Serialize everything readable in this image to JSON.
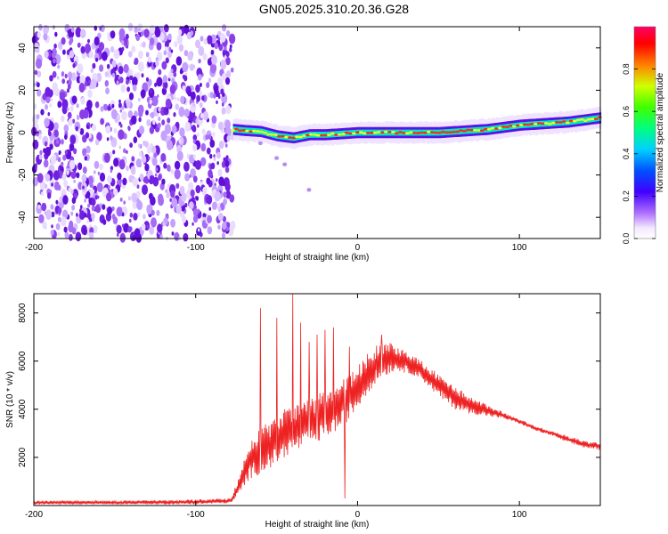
{
  "title": "GN05.2025.310.20.36.G28",
  "chart_data": [
    {
      "type": "heatmap",
      "name": "spectrogram",
      "xlabel": "Height of straight line (km)",
      "ylabel": "Frequency (Hz)",
      "xlim": [
        -200,
        150
      ],
      "ylim": [
        -50,
        50
      ],
      "x_ticks": [
        -200,
        -100,
        0,
        100
      ],
      "y_ticks": [
        -40,
        -20,
        0,
        20,
        40
      ],
      "noise_region": [
        -200,
        -77
      ],
      "signal_start": -77,
      "trace": {
        "x": [
          -77,
          -70,
          -60,
          -50,
          -40,
          -30,
          -20,
          -10,
          0,
          10,
          20,
          30,
          40,
          50,
          60,
          70,
          80,
          90,
          100,
          110,
          120,
          130,
          140,
          150
        ],
        "y": [
          1.5,
          1.0,
          0.5,
          -1.5,
          -2.5,
          -1.0,
          -1.0,
          -0.5,
          0.0,
          0.0,
          0.0,
          0.0,
          0.0,
          0.0,
          0.5,
          1.0,
          1.5,
          2.5,
          3.5,
          4.0,
          4.5,
          5.0,
          6.0,
          7.0
        ]
      },
      "side_trace": {
        "x": [
          -60,
          -50,
          -45,
          -30
        ],
        "y": [
          -5,
          -12,
          -15,
          -27
        ]
      },
      "colorbar": {
        "label": "Normalized spectral amplitude",
        "range": [
          0,
          1
        ],
        "ticks": [
          0,
          0.2,
          0.4,
          0.6,
          0.8
        ],
        "tick_labels": [
          "0.0",
          "0.2",
          "0.4",
          "0.6",
          "0.8"
        ],
        "colormap": "rainbow (white-purple-blue-cyan-green-yellow-red-magenta)"
      },
      "colors": {
        "noise": "#7a30e0",
        "low": "#6a00ff",
        "mid": "#00ffaa",
        "peak": "#ff2020"
      }
    },
    {
      "type": "line",
      "name": "snr",
      "xlabel": "Height of straight line (km)",
      "ylabel": "SNR (10 * v/v)",
      "xlim": [
        -200,
        150
      ],
      "ylim": [
        0,
        8800
      ],
      "x_ticks": [
        -200,
        -100,
        0,
        100
      ],
      "y_ticks": [
        2000,
        4000,
        6000,
        8000
      ],
      "color": "#ee2222",
      "envelope": {
        "x": [
          -200,
          -150,
          -100,
          -78,
          -72,
          -68,
          -64,
          -60,
          -55,
          -50,
          -45,
          -40,
          -35,
          -30,
          -25,
          -20,
          -15,
          -10,
          -5,
          0,
          5,
          10,
          15,
          20,
          25,
          30,
          35,
          40,
          50,
          60,
          70,
          80,
          90,
          100,
          110,
          120,
          130,
          140,
          150
        ],
        "low": [
          50,
          50,
          50,
          100,
          500,
          1000,
          1200,
          1300,
          1500,
          1700,
          2000,
          2200,
          2300,
          2400,
          2600,
          2800,
          3000,
          3200,
          3600,
          4000,
          4500,
          5000,
          5300,
          5500,
          5600,
          5500,
          5400,
          5200,
          4500,
          4000,
          3800,
          3700,
          3600,
          3400,
          3100,
          2900,
          2600,
          2400,
          2300
        ],
        "high": [
          200,
          200,
          250,
          300,
          1500,
          2500,
          3000,
          3200,
          3500,
          3700,
          4000,
          4200,
          4300,
          4400,
          4600,
          4800,
          5000,
          5200,
          5500,
          5800,
          6200,
          6600,
          6800,
          6800,
          6600,
          6400,
          6200,
          6000,
          5500,
          5000,
          4500,
          4200,
          3900,
          3600,
          3300,
          3100,
          2900,
          2700,
          2600
        ]
      },
      "spikes": [
        {
          "x": -60,
          "y": 8200
        },
        {
          "x": -50,
          "y": 7800
        },
        {
          "x": -40,
          "y": 8800
        },
        {
          "x": -35,
          "y": 7600
        },
        {
          "x": -30,
          "y": 6800
        },
        {
          "x": -25,
          "y": 7100
        },
        {
          "x": -20,
          "y": 7300
        },
        {
          "x": -15,
          "y": 7400
        },
        {
          "x": -5,
          "y": 6600
        },
        {
          "x": 15,
          "y": 7100
        },
        {
          "x": -8,
          "y": 300
        }
      ]
    }
  ]
}
